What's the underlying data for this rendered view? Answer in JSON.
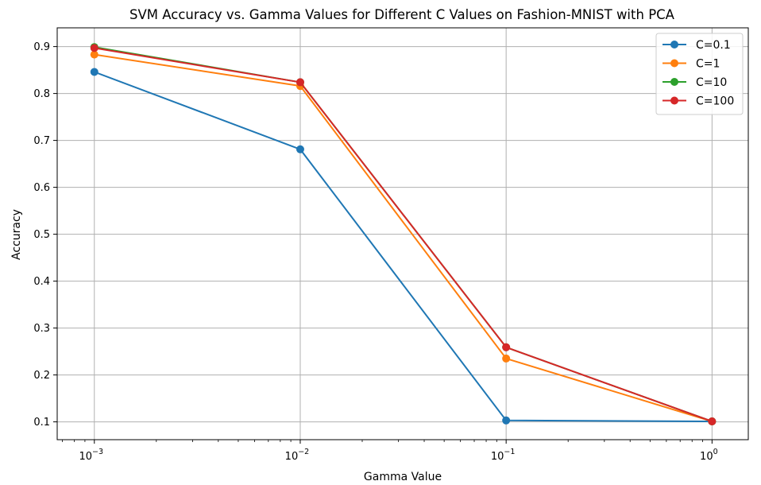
{
  "chart_data": {
    "type": "line",
    "title": "SVM Accuracy vs. Gamma Values for Different C Values on Fashion-MNIST with PCA",
    "xlabel": "Gamma Value",
    "ylabel": "Accuracy",
    "xscale": "log",
    "x": [
      0.001,
      0.01,
      0.1,
      1
    ],
    "xlim": [
      0.00066,
      1.5
    ],
    "ylim": [
      0.062,
      0.94
    ],
    "xticks": [
      {
        "value": 0.001,
        "base": "10",
        "exp": "−3"
      },
      {
        "value": 0.01,
        "base": "10",
        "exp": "−2"
      },
      {
        "value": 0.1,
        "base": "10",
        "exp": "−1"
      },
      {
        "value": 1,
        "base": "10",
        "exp": "0"
      }
    ],
    "yticks": [
      {
        "value": 0.1,
        "label": "0.1"
      },
      {
        "value": 0.2,
        "label": "0.2"
      },
      {
        "value": 0.3,
        "label": "0.3"
      },
      {
        "value": 0.4,
        "label": "0.4"
      },
      {
        "value": 0.5,
        "label": "0.5"
      },
      {
        "value": 0.6,
        "label": "0.6"
      },
      {
        "value": 0.7,
        "label": "0.7"
      },
      {
        "value": 0.8,
        "label": "0.8"
      },
      {
        "value": 0.9,
        "label": "0.9"
      }
    ],
    "grid": true,
    "legend_position": "top-right",
    "series": [
      {
        "name": "C=0.1",
        "color": "#1f77b4",
        "values": [
          0.846,
          0.681,
          0.103,
          0.101
        ]
      },
      {
        "name": "C=1",
        "color": "#ff7f0e",
        "values": [
          0.883,
          0.816,
          0.235,
          0.101
        ]
      },
      {
        "name": "C=10",
        "color": "#2ca02c",
        "values": [
          0.899,
          0.824,
          0.259,
          0.101
        ]
      },
      {
        "name": "C=100",
        "color": "#d62728",
        "values": [
          0.897,
          0.824,
          0.259,
          0.101
        ]
      }
    ]
  }
}
